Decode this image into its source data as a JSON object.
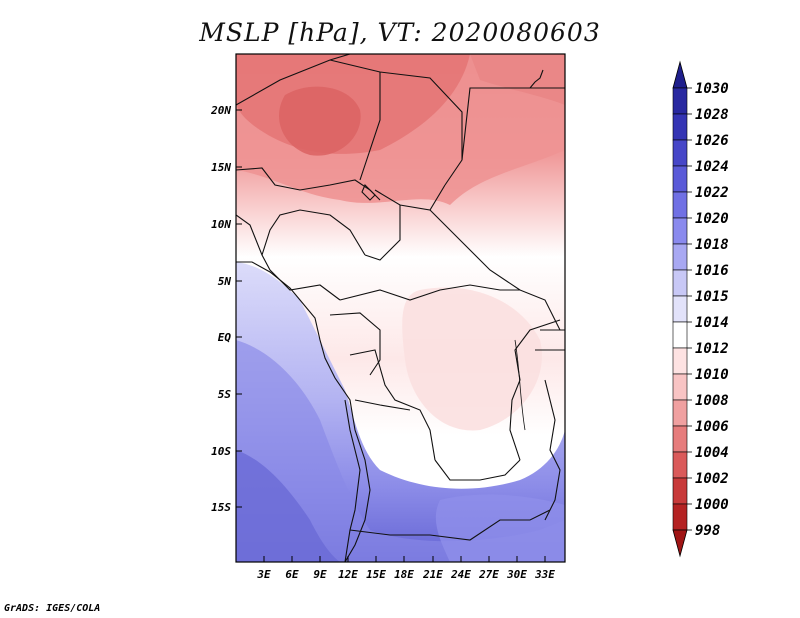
{
  "title": "MSLP [hPa], VT: 2020080603",
  "credit": "GrADS: IGES/COLA",
  "map": {
    "region": "Central Africa",
    "lat_labels": [
      "20N",
      "15N",
      "10N",
      "5N",
      "EQ",
      "5S",
      "10S",
      "15S"
    ],
    "lon_labels": [
      "3E",
      "6E",
      "9E",
      "12E",
      "15E",
      "18E",
      "21E",
      "24E",
      "27E",
      "30E",
      "33E"
    ]
  },
  "colorbar": {
    "units": "hPa",
    "levels": [
      "1030",
      "1028",
      "1026",
      "1024",
      "1022",
      "1020",
      "1018",
      "1016",
      "1015",
      "1014",
      "1012",
      "1010",
      "1008",
      "1006",
      "1004",
      "1002",
      "1000",
      "998"
    ],
    "colors": [
      "#1f1f8c",
      "#2828a0",
      "#3434b4",
      "#4646c8",
      "#5a5ad8",
      "#7070e4",
      "#8a8aee",
      "#a8a8f2",
      "#c8c8f6",
      "#e2e2fa",
      "#ffffff",
      "#fde2e2",
      "#f8c4c4",
      "#f0a0a0",
      "#e67c7c",
      "#da5a5a",
      "#c83a3a",
      "#b42222",
      "#a01414"
    ]
  }
}
